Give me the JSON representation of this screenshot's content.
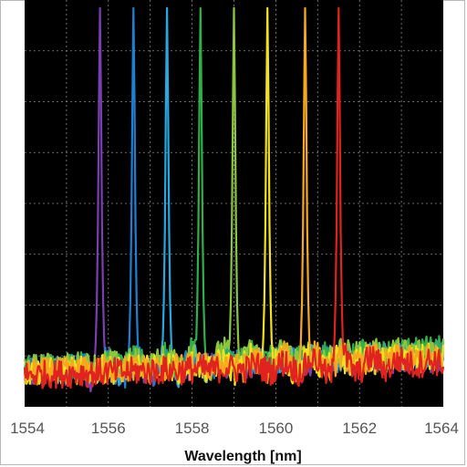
{
  "chart_data": {
    "type": "line",
    "title": "",
    "xlabel": "Wavelength [nm]",
    "ylabel": "",
    "xlim": [
      1554,
      1564
    ],
    "ylim": [
      0,
      1
    ],
    "x_ticks": [
      "1554",
      "1556",
      "1558",
      "1560",
      "1562",
      "1564"
    ],
    "grid": true,
    "legend": "none",
    "background": "#000000",
    "series": [
      {
        "color": "#7a3fb0",
        "peak_x": 1555.8,
        "peak_y": 0.98,
        "noise_floor": 0.08
      },
      {
        "color": "#1f7fd1",
        "peak_x": 1556.6,
        "peak_y": 0.98,
        "noise_floor": 0.09
      },
      {
        "color": "#28a8e0",
        "peak_x": 1557.4,
        "peak_y": 0.98,
        "noise_floor": 0.09
      },
      {
        "color": "#2fb04a",
        "peak_x": 1558.2,
        "peak_y": 0.98,
        "noise_floor": 0.1
      },
      {
        "color": "#8cc63f",
        "peak_x": 1559.0,
        "peak_y": 0.98,
        "noise_floor": 0.1
      },
      {
        "color": "#f2e21b",
        "peak_x": 1559.8,
        "peak_y": 0.98,
        "noise_floor": 0.08
      },
      {
        "color": "#f7a91c",
        "peak_x": 1560.7,
        "peak_y": 0.98,
        "noise_floor": 0.08
      },
      {
        "color": "#e0231f",
        "peak_x": 1561.5,
        "peak_y": 0.98,
        "noise_floor": 0.07
      }
    ]
  }
}
